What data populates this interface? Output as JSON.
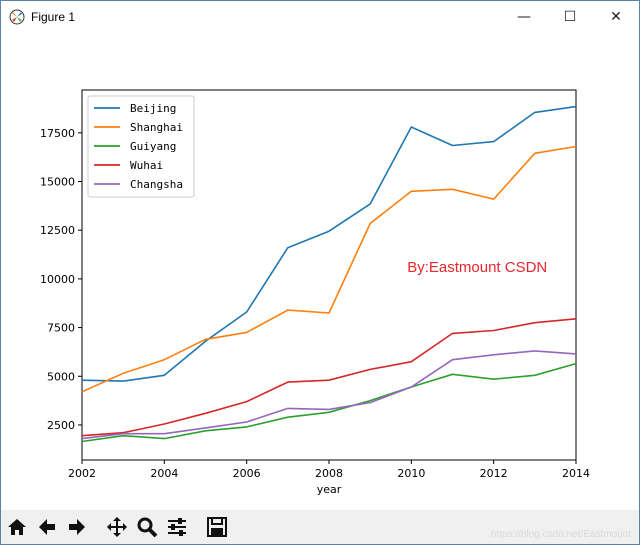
{
  "window": {
    "title": "Figure 1",
    "minimize_symbol": "—",
    "maximize_symbol": "☐",
    "close_symbol": "✕"
  },
  "toolbar": {
    "buttons": [
      "home-icon",
      "back-icon",
      "forward-icon",
      "pan-icon",
      "zoom-icon",
      "configure-subplots-icon",
      "save-icon"
    ]
  },
  "watermark": "https://blog.csdn.net/Eastmount",
  "chart_data": {
    "type": "line",
    "title": "",
    "xlabel": "year",
    "ylabel": "",
    "x": [
      2002,
      2003,
      2004,
      2005,
      2006,
      2007,
      2008,
      2009,
      2010,
      2011,
      2012,
      2013,
      2014
    ],
    "xlim": [
      2002,
      2014
    ],
    "ylim": [
      700,
      19700
    ],
    "xticks": [
      "2002",
      "2004",
      "2006",
      "2008",
      "2010",
      "2012",
      "2014"
    ],
    "yticks": [
      "2500",
      "5000",
      "7500",
      "10000",
      "12500",
      "15000",
      "17500"
    ],
    "legend_position": "top-left",
    "grid": false,
    "series": [
      {
        "name": "Beijing",
        "color": "#1f77b4",
        "values": [
          4800,
          4750,
          5050,
          6800,
          8300,
          11600,
          12450,
          13850,
          17800,
          16850,
          17050,
          18550,
          18850
        ]
      },
      {
        "name": "Shanghai",
        "color": "#ff7f0e",
        "values": [
          4200,
          5150,
          5850,
          6900,
          7250,
          8400,
          8250,
          12850,
          14500,
          14600,
          14100,
          16450,
          16800
        ]
      },
      {
        "name": "Guiyang",
        "color": "#2ca02c",
        "values": [
          1650,
          1950,
          1800,
          2200,
          2400,
          2900,
          3150,
          3750,
          4450,
          5100,
          4850,
          5050,
          5650
        ]
      },
      {
        "name": "Wuhai",
        "color": "#d62728",
        "values": [
          1950,
          2100,
          2550,
          3100,
          3700,
          4700,
          4800,
          5350,
          5750,
          7200,
          7350,
          7750,
          7950
        ]
      },
      {
        "name": "Changsha",
        "color": "#9467bd",
        "values": [
          1800,
          2050,
          2050,
          2350,
          2650,
          3350,
          3300,
          3650,
          4450,
          5850,
          6100,
          6300,
          6150
        ]
      }
    ],
    "annotations": [
      {
        "text": "By:Eastmount CSDN",
        "x": 2009.9,
        "y": 10350,
        "color": "#e8272d"
      }
    ]
  }
}
